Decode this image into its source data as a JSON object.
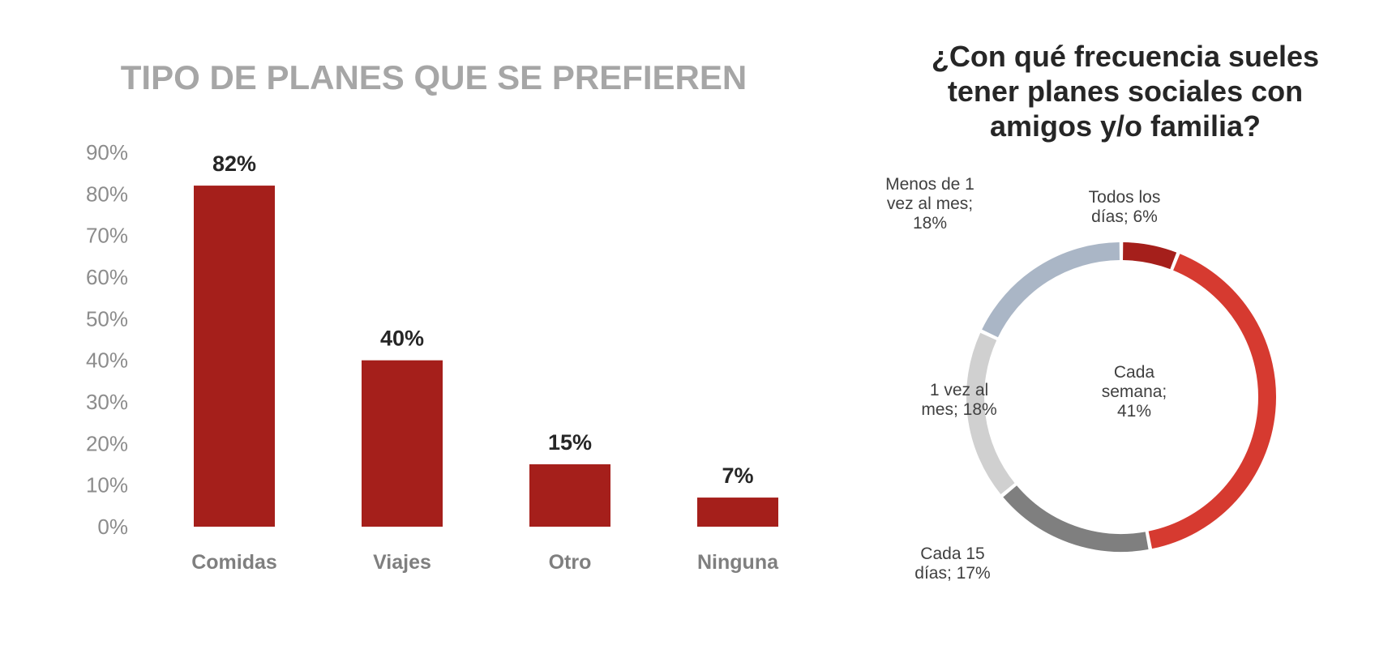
{
  "chart_data": [
    {
      "type": "bar",
      "title": "TIPO DE PLANES QUE SE PREFIEREN",
      "categories": [
        "Comidas",
        "Viajes",
        "Otro",
        "Ninguna"
      ],
      "values": [
        82,
        40,
        15,
        7
      ],
      "value_labels": [
        "82%",
        "40%",
        "15%",
        "7%"
      ],
      "yticks": [
        "0%",
        "10%",
        "20%",
        "30%",
        "40%",
        "50%",
        "60%",
        "70%",
        "80%",
        "90%"
      ],
      "ylim": [
        0,
        90
      ],
      "xlabel": "",
      "ylabel": "",
      "grid": false,
      "bar_color": "#a51f1b"
    },
    {
      "type": "pie",
      "donut": true,
      "title": "¿Con qué frecuencia sueles tener planes sociales con amigos y/o familia?",
      "title_lines": [
        "¿Con qué frecuencia sueles",
        "tener planes sociales con",
        "amigos y/o familia?"
      ],
      "slices": [
        {
          "name": "Todos los días",
          "value": 6,
          "label_lines": [
            "Todos los",
            "días; 6%"
          ],
          "color": "#a51f1b"
        },
        {
          "name": "Cada semana",
          "value": 41,
          "label_lines": [
            "Cada",
            "semana;",
            "41%"
          ],
          "color": "#d63a30"
        },
        {
          "name": "Cada 15 días",
          "value": 17,
          "label_lines": [
            "Cada 15",
            "días; 17%"
          ],
          "color": "#7f7f7f"
        },
        {
          "name": "1 vez al mes",
          "value": 18,
          "label_lines": [
            "1 vez al",
            "mes; 18%"
          ],
          "color": "#d0d0d0"
        },
        {
          "name": "Menos de 1 vez al mes",
          "value": 18,
          "label_lines": [
            "Menos de 1",
            "vez al mes;",
            "18%"
          ],
          "color": "#aab6c6"
        }
      ]
    }
  ]
}
